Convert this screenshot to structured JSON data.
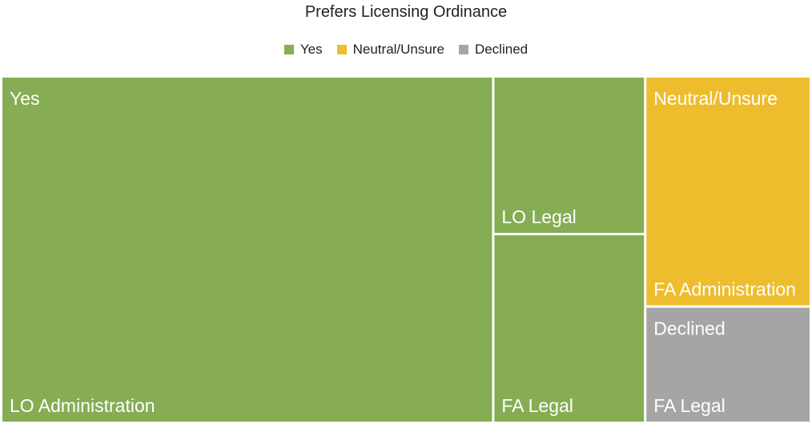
{
  "chart_data": {
    "type": "treemap",
    "title": "Prefers Licensing Ordinance",
    "legend": {
      "position": "top",
      "entries": [
        {
          "name": "Yes",
          "color": "#86AD53"
        },
        {
          "name": "Neutral/Unsure",
          "color": "#EDBD2E"
        },
        {
          "name": "Declined",
          "color": "#A5A5A5"
        }
      ]
    },
    "groups": [
      {
        "name": "Yes",
        "color": "#86AD53",
        "show_label": true,
        "children": [
          {
            "name": "LO Administration",
            "value": 18
          },
          {
            "name": "LO Legal",
            "value": 2.5
          },
          {
            "name": "FA Legal",
            "value": 3
          }
        ]
      },
      {
        "name": "Neutral/Unsure",
        "color": "#EDBD2E",
        "show_label": true,
        "children": [
          {
            "name": "FA Administration",
            "value": 4
          }
        ]
      },
      {
        "name": "Declined",
        "color": "#A5A5A5",
        "show_label": true,
        "children": [
          {
            "name": "FA Legal",
            "value": 2
          }
        ]
      }
    ]
  }
}
